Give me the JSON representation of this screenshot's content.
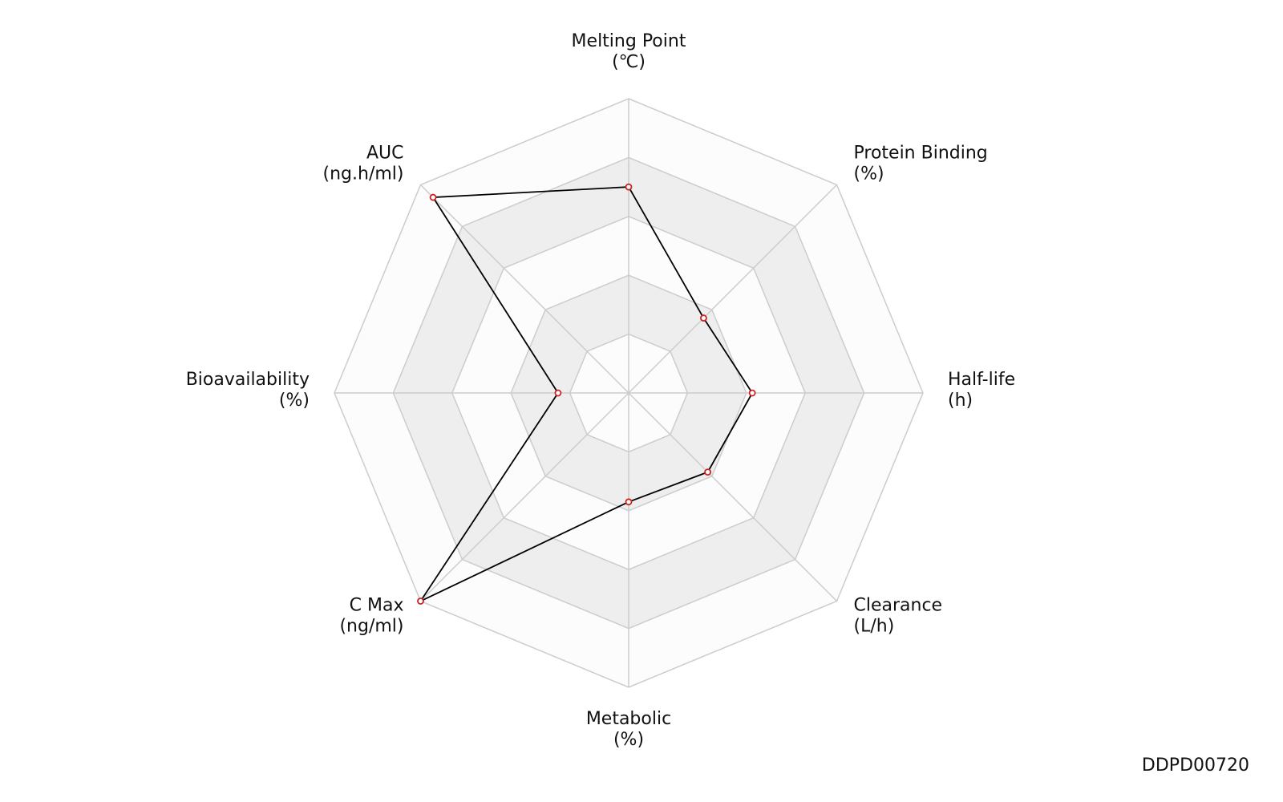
{
  "chart_data": {
    "type": "radar",
    "categories": [
      "Melting Point",
      "Protein Binding",
      "Half-life",
      "Clearance",
      "Metabolic",
      "C Max",
      "Bioavailability",
      "AUC"
    ],
    "units": [
      "(℃)",
      "(%)",
      "(h)",
      "(L/h)",
      "(%)",
      "(ng/ml)",
      "(%)",
      "(ng.h/ml)"
    ],
    "values": [
      3.5,
      1.8,
      2.1,
      1.9,
      1.85,
      5.0,
      1.2,
      4.7
    ],
    "ylim": [
      0,
      5
    ],
    "yticks": [
      1,
      2,
      3,
      4,
      5
    ],
    "color": "#000000",
    "marker_color": "#cc2222",
    "grid": true,
    "caption": "DDPD00720"
  }
}
